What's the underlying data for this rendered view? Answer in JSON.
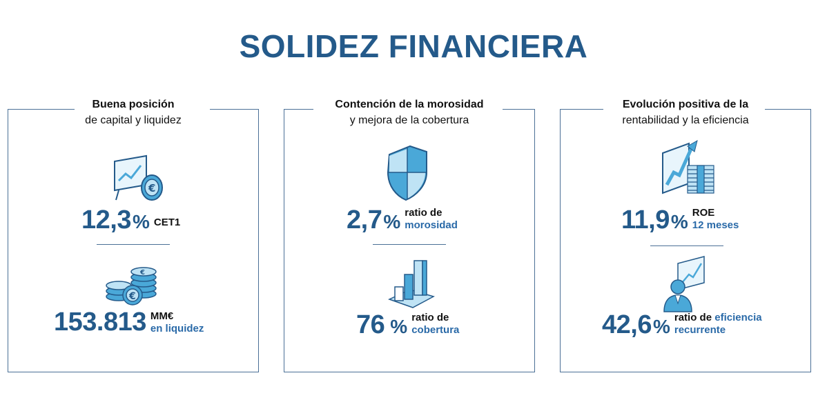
{
  "title": "SOLIDEZ FINANCIERA",
  "panels": [
    {
      "heading_line1": "Buena posición",
      "heading_line2": "de capital y liquidez",
      "metric1": {
        "value": "12,3",
        "unit": "%",
        "label_line1": "CET1",
        "label_line2": ""
      },
      "metric2": {
        "value": "153.813",
        "unit": "",
        "label_line1": "MM€",
        "label_line2": "en liquidez"
      }
    },
    {
      "heading_line1": "Contención de la morosidad",
      "heading_line2": "y mejora de la cobertura",
      "metric1": {
        "value": "2,7",
        "unit": "%",
        "label_line1": "ratio de",
        "label_line2": "morosidad"
      },
      "metric2": {
        "value": "76",
        "unit": "%",
        "label_line1": "ratio de",
        "label_line2": "cobertura"
      }
    },
    {
      "heading_line1": "Evolución positiva de la",
      "heading_line2": "rentabilidad y la eficiencia",
      "metric1": {
        "value": "11,9",
        "unit": "%",
        "label_line1": "ROE",
        "label_line2": "12 meses"
      },
      "metric2": {
        "value": "42,6",
        "unit": "%",
        "label_line1_a": "ratio de",
        "label_line1_b": "eficiencia",
        "label_line2": "recurrente"
      }
    }
  ],
  "icons": [
    "chart-euro-board-icon",
    "coins-euro-icon",
    "shield-icon",
    "bar-chart-icon",
    "growth-chart-money-icon",
    "businessman-chart-icon"
  ],
  "colors": {
    "primary": "#245a8a",
    "accent": "#2a6aa8",
    "icon_light": "#bfe3f5",
    "icon_mid": "#4aa8d8"
  }
}
